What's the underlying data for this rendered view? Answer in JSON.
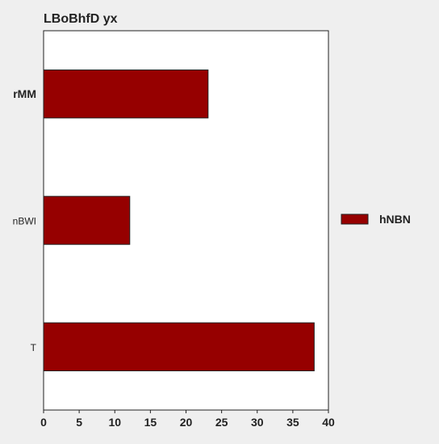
{
  "chart_data": {
    "type": "bar",
    "orientation": "horizontal",
    "title": "LBoBhfD yx",
    "xlabel": "",
    "ylabel": "",
    "categories": [
      "rMM",
      "nBWI",
      "T"
    ],
    "series": [
      {
        "name": "hNBN",
        "values": [
          23.1,
          12.1,
          38.0
        ],
        "color": "#960000"
      }
    ],
    "xlim": [
      0,
      40
    ],
    "xticks": [
      "0",
      "5",
      "10",
      "15",
      "20",
      "25",
      "30",
      "35",
      "40"
    ],
    "grid": false,
    "legend": "right"
  }
}
